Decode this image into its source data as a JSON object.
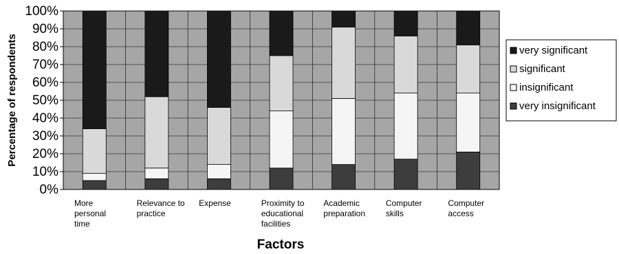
{
  "chart_data": {
    "type": "bar",
    "stacked": true,
    "percent_stacked": true,
    "xlabel": "Factors",
    "ylabel": "Percentage of respondents",
    "ylim": [
      0,
      100
    ],
    "yticks": [
      "0%",
      "10%",
      "20%",
      "30%",
      "40%",
      "50%",
      "60%",
      "70%",
      "80%",
      "90%",
      "100%"
    ],
    "grid": true,
    "legend_position": "right",
    "categories": [
      [
        "More",
        "personal",
        "time"
      ],
      [
        "Relevance to",
        "practice"
      ],
      [
        "Expense"
      ],
      [
        "Proximity to",
        "educational",
        "facilities"
      ],
      [
        "Academic",
        "preparation"
      ],
      [
        "Computer",
        "skills"
      ],
      [
        "Computer",
        "access"
      ]
    ],
    "series": [
      {
        "name": "very insignificant",
        "color": "#3d3d3d",
        "values": [
          5,
          6,
          6,
          12,
          14,
          17,
          21
        ]
      },
      {
        "name": "insignificant",
        "color": "#f5f5f5",
        "values": [
          4,
          6,
          8,
          32,
          37,
          37,
          33
        ]
      },
      {
        "name": "significant",
        "color": "#d9d9d9",
        "values": [
          25,
          40,
          32,
          31,
          40,
          32,
          27
        ]
      },
      {
        "name": "very significant",
        "color": "#1a1a1a",
        "values": [
          66,
          48,
          54,
          25,
          9,
          14,
          19
        ]
      }
    ],
    "legend_order": [
      "very significant",
      "significant",
      "insignificant",
      "very insignificant"
    ],
    "plot_background": "#a6a6a6"
  }
}
